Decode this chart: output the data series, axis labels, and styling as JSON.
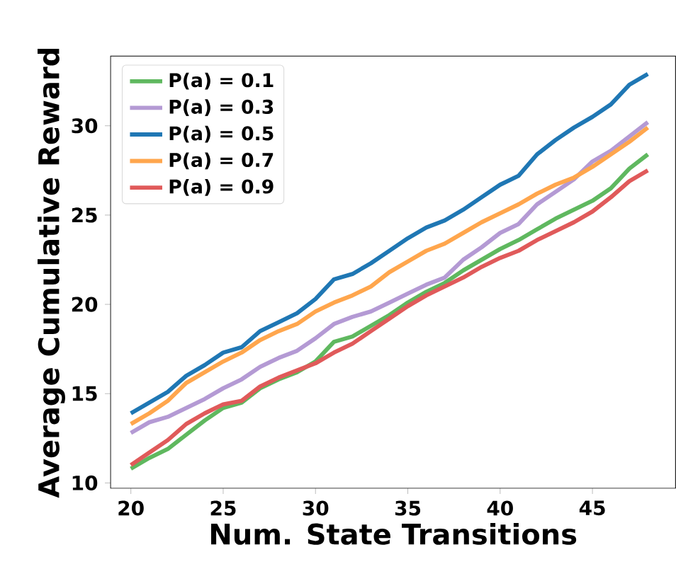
{
  "chart_data": {
    "type": "line",
    "xlabel": "Num. State Transitions",
    "ylabel": "Average Cumulative Reward",
    "x": [
      20,
      21,
      22,
      23,
      24,
      25,
      26,
      27,
      28,
      29,
      30,
      31,
      32,
      33,
      34,
      35,
      36,
      37,
      38,
      39,
      40,
      41,
      42,
      43,
      44,
      45,
      46,
      47,
      48
    ],
    "xlim": [
      18.9,
      49.5
    ],
    "ylim": [
      9.7,
      33.9
    ],
    "xticks": [
      20,
      25,
      30,
      35,
      40,
      45
    ],
    "yticks": [
      10,
      15,
      20,
      25,
      30
    ],
    "legend": "top left",
    "grid": false,
    "line_style": "solid",
    "marker": "none",
    "series": [
      {
        "name": "P(a) = 0.1",
        "color": "#5fb85f",
        "values": [
          10.8,
          11.4,
          11.9,
          12.7,
          13.5,
          14.2,
          14.5,
          15.3,
          15.8,
          16.2,
          16.8,
          17.9,
          18.2,
          18.8,
          19.4,
          20.1,
          20.7,
          21.2,
          21.9,
          22.5,
          23.1,
          23.6,
          24.2,
          24.8,
          25.3,
          25.8,
          26.5,
          27.6,
          28.4
        ]
      },
      {
        "name": "P(a) = 0.3",
        "color": "#b49ad4",
        "values": [
          12.8,
          13.4,
          13.7,
          14.2,
          14.7,
          15.3,
          15.8,
          16.5,
          17.0,
          17.4,
          18.1,
          18.9,
          19.3,
          19.6,
          20.1,
          20.6,
          21.1,
          21.5,
          22.5,
          23.2,
          24.0,
          24.5,
          25.6,
          26.3,
          27.0,
          28.0,
          28.6,
          29.4,
          30.2
        ]
      },
      {
        "name": "P(a) = 0.5",
        "color": "#1f77b4",
        "values": [
          13.9,
          14.5,
          15.1,
          16.0,
          16.6,
          17.3,
          17.6,
          18.5,
          19.0,
          19.5,
          20.3,
          21.4,
          21.7,
          22.3,
          23.0,
          23.7,
          24.3,
          24.7,
          25.3,
          26.0,
          26.7,
          27.2,
          28.4,
          29.2,
          29.9,
          30.5,
          31.2,
          32.3,
          32.9
        ]
      },
      {
        "name": "P(a) = 0.7",
        "color": "#ffa64d",
        "values": [
          13.3,
          13.9,
          14.6,
          15.6,
          16.2,
          16.8,
          17.3,
          18.0,
          18.5,
          18.9,
          19.6,
          20.1,
          20.5,
          21.0,
          21.8,
          22.4,
          23.0,
          23.4,
          24.0,
          24.6,
          25.1,
          25.6,
          26.2,
          26.7,
          27.1,
          27.7,
          28.4,
          29.1,
          29.9
        ]
      },
      {
        "name": "P(a) = 0.9",
        "color": "#e05a5a",
        "values": [
          11.0,
          11.7,
          12.4,
          13.3,
          13.9,
          14.4,
          14.6,
          15.4,
          15.9,
          16.3,
          16.7,
          17.3,
          17.8,
          18.5,
          19.2,
          19.9,
          20.5,
          21.0,
          21.5,
          22.1,
          22.6,
          23.0,
          23.6,
          24.1,
          24.6,
          25.2,
          26.0,
          26.9,
          27.5
        ]
      }
    ]
  }
}
